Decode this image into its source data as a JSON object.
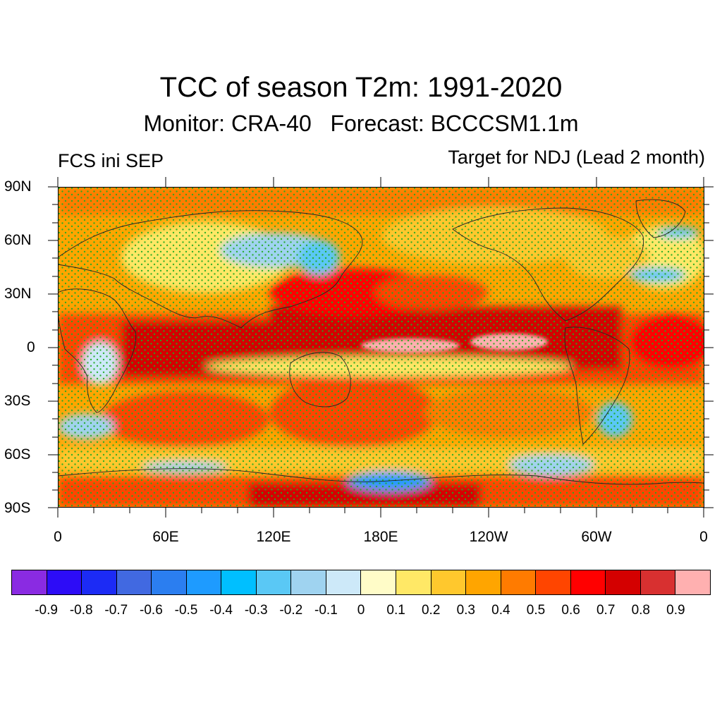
{
  "title": "TCC of season T2m: 1991-2020",
  "subtitle": "Monitor: CRA-40   Forecast: BCCCSM1.1m",
  "left_label": "FCS ini SEP",
  "right_label": "Target for NDJ (Lead 2 month)",
  "lat_labels": [
    "90N",
    "60N",
    "30N",
    "0",
    "30S",
    "60S",
    "90S"
  ],
  "lon_labels": [
    "0",
    "60E",
    "120E",
    "180E",
    "120W",
    "60W",
    "0"
  ],
  "colorbar": {
    "colors": [
      "#8a2be2",
      "#2d0cf7",
      "#1c2bf5",
      "#4169e1",
      "#2b7ef0",
      "#1e9bff",
      "#00bfff",
      "#5ac8f5",
      "#9fd3f0",
      "#cde9f9",
      "#fffcc8",
      "#ffe866",
      "#ffc82d",
      "#ffa500",
      "#ff7b00",
      "#ff4500",
      "#ff0000",
      "#d40000",
      "#d83030",
      "#ffb0b0"
    ],
    "labels": [
      "-0.9",
      "-0.8",
      "-0.7",
      "-0.6",
      "-0.5",
      "-0.4",
      "-0.3",
      "-0.2",
      "-0.1",
      "0",
      "0.1",
      "0.2",
      "0.3",
      "0.4",
      "0.5",
      "0.6",
      "0.7",
      "0.8",
      "0.9"
    ]
  },
  "stipple_color": "#22aa22",
  "map_region": "global",
  "projection": "cylindrical equidistant",
  "lon_range": [
    0,
    360
  ],
  "lat_range": [
    -90,
    90
  ]
}
